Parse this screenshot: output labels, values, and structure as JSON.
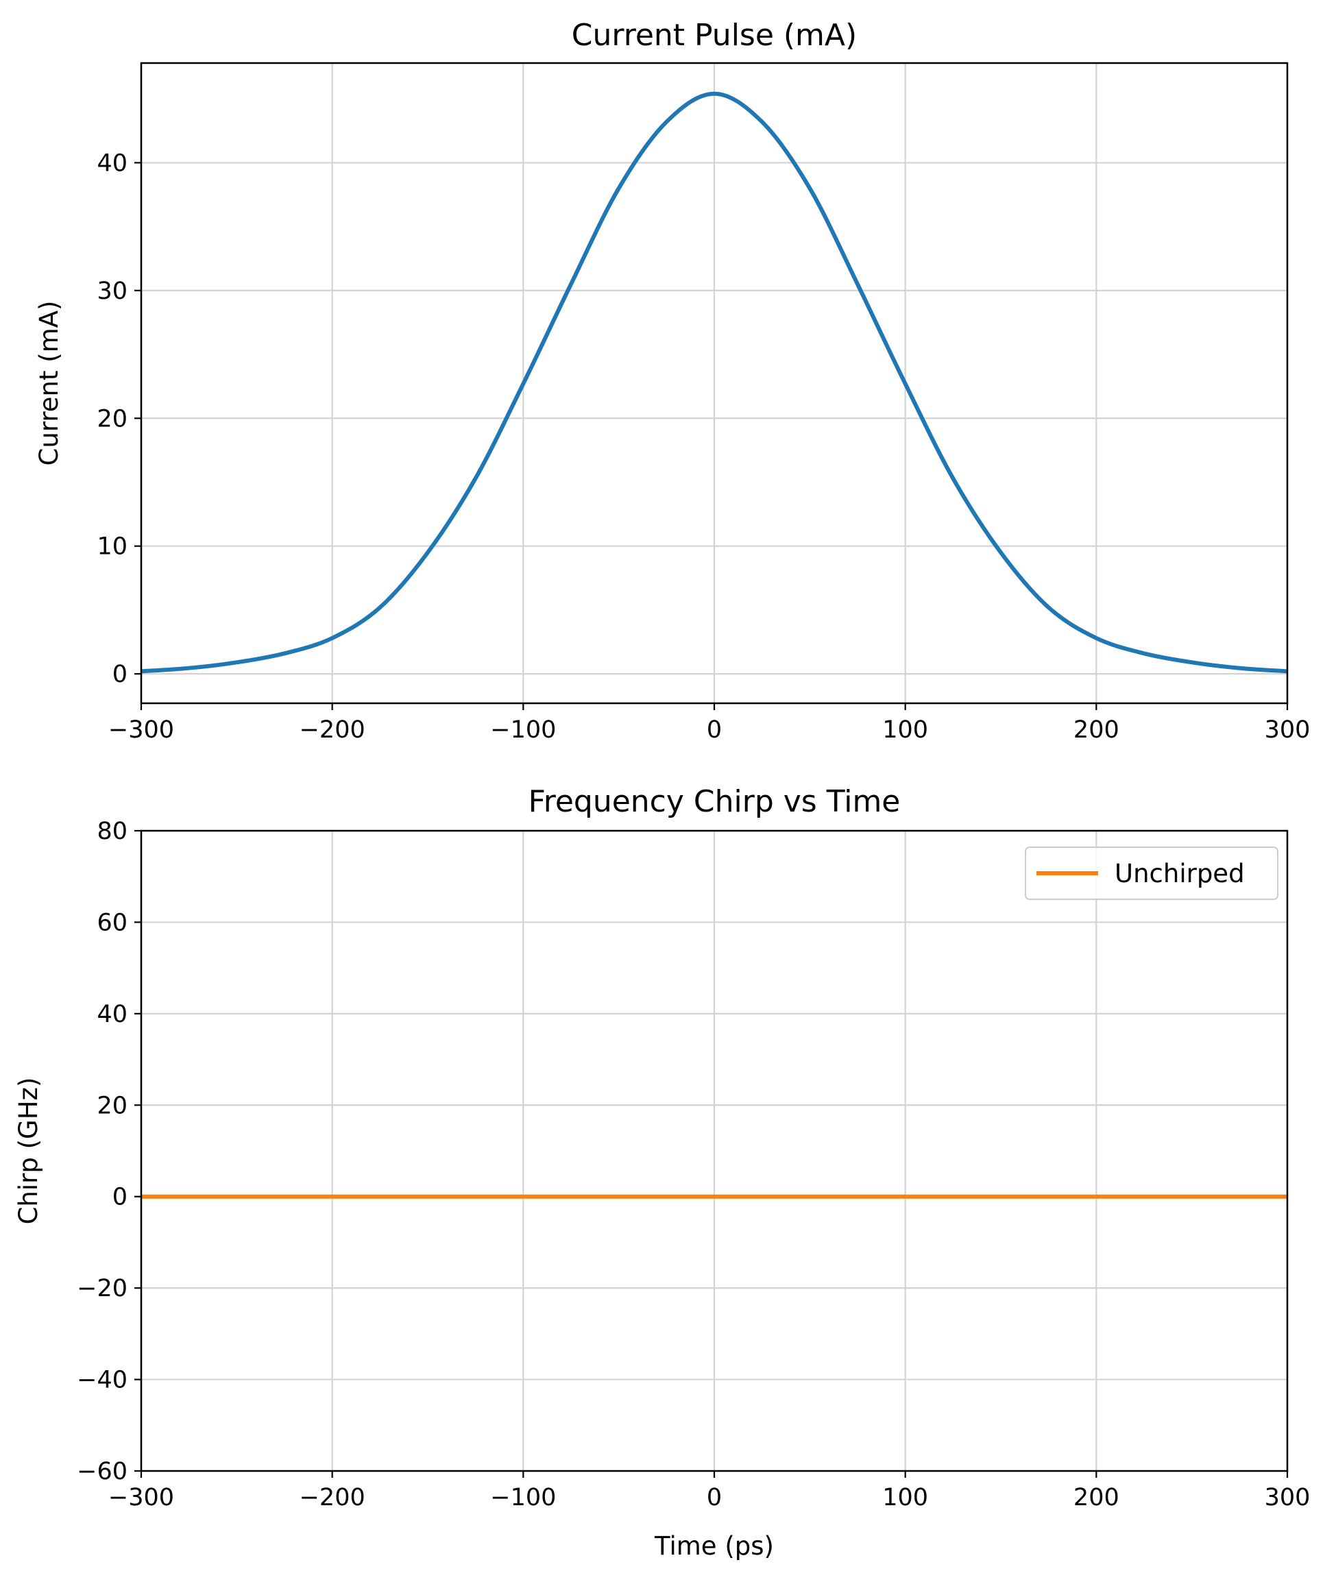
{
  "chart_data": [
    {
      "type": "line",
      "title": "Current Pulse (mA)",
      "xlabel": "",
      "ylabel": "Current (mA)",
      "xlim": [
        -300,
        300
      ],
      "ylim": [
        -2.3,
        47.8
      ],
      "xticks": [
        -300,
        -200,
        -100,
        0,
        100,
        200,
        300
      ],
      "xtick_labels": [
        "−300",
        "−200",
        "−100",
        "0",
        "100",
        "200",
        "300"
      ],
      "yticks": [
        0,
        10,
        20,
        30,
        40
      ],
      "ytick_labels": [
        "0",
        "10",
        "20",
        "30",
        "40"
      ],
      "grid": true,
      "series": [
        {
          "color": "#1f77b4",
          "x": [
            -300,
            -275,
            -250,
            -225,
            -200,
            -175,
            -150,
            -125,
            -100,
            -75,
            -50,
            -25,
            0,
            25,
            50,
            75,
            100,
            125,
            150,
            175,
            200,
            225,
            250,
            275,
            300
          ],
          "y": [
            0.2,
            0.45,
            0.9,
            1.6,
            2.8,
            5.2,
            9.5,
            15.3,
            22.7,
            30.5,
            38.0,
            43.2,
            45.4,
            43.2,
            38.0,
            30.5,
            22.7,
            15.3,
            9.5,
            5.2,
            2.8,
            1.6,
            0.9,
            0.45,
            0.2
          ]
        }
      ]
    },
    {
      "type": "line",
      "title": "Frequency Chirp vs Time",
      "xlabel": "Time (ps)",
      "ylabel": "Chirp (GHz)",
      "xlim": [
        -300,
        300
      ],
      "ylim": [
        -60,
        80
      ],
      "xticks": [
        -300,
        -200,
        -100,
        0,
        100,
        200,
        300
      ],
      "xtick_labels": [
        "−300",
        "−200",
        "−100",
        "0",
        "100",
        "200",
        "300"
      ],
      "yticks": [
        -60,
        -40,
        -20,
        0,
        20,
        40,
        60,
        80
      ],
      "ytick_labels": [
        "−60",
        "−40",
        "−20",
        "0",
        "20",
        "40",
        "60",
        "80"
      ],
      "grid": true,
      "legend": "top-right",
      "series": [
        {
          "name": "Unchirped",
          "color": "#ff7f0e",
          "x": [
            -300,
            300
          ],
          "y": [
            0,
            0
          ]
        }
      ]
    }
  ]
}
